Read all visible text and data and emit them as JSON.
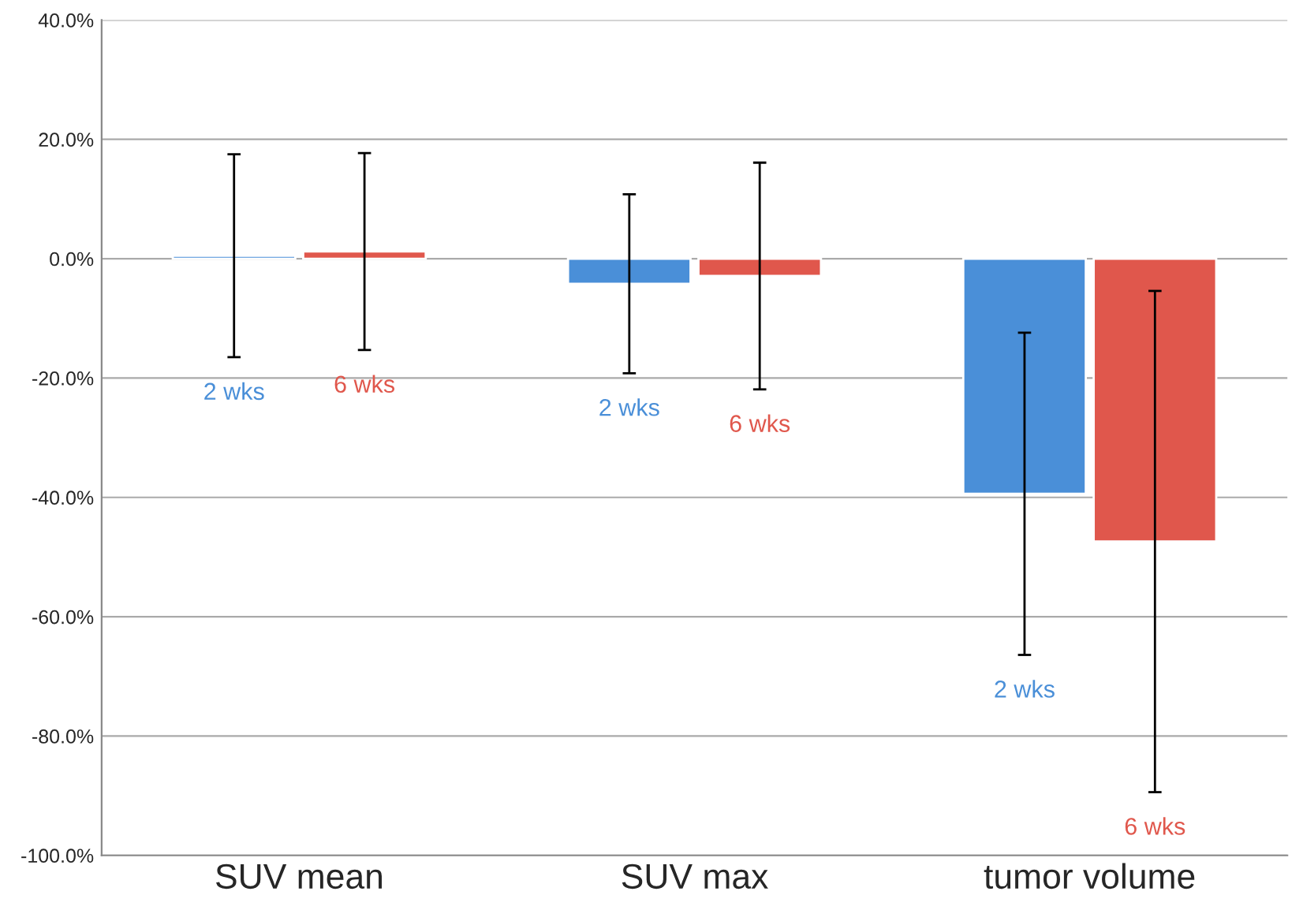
{
  "chart_data": {
    "type": "bar",
    "categories": [
      "SUV mean",
      "SUV max",
      "tumor volume"
    ],
    "series": [
      {
        "name": "2 wks",
        "color": "#4a8fd8",
        "values": [
          0.5,
          -4.2,
          -39.4
        ],
        "errors": [
          17,
          15,
          27
        ]
      },
      {
        "name": "6 wks",
        "color": "#e0574c",
        "values": [
          1.2,
          -2.9,
          -47.4
        ],
        "errors": [
          16.5,
          19,
          42
        ]
      }
    ],
    "ylim": [
      -100,
      40
    ],
    "yticks": [
      {
        "value": -100,
        "label": "-100.0%"
      },
      {
        "value": -80,
        "label": "-80.0%"
      },
      {
        "value": -60,
        "label": "-60.0%"
      },
      {
        "value": -40,
        "label": "-40.0%"
      },
      {
        "value": -20,
        "label": "-20.0%"
      },
      {
        "value": 0,
        "label": "0.0%"
      },
      {
        "value": 20,
        "label": "20.0%"
      },
      {
        "value": 40,
        "label": "40.0%"
      }
    ],
    "grid": "y",
    "legend": false
  }
}
